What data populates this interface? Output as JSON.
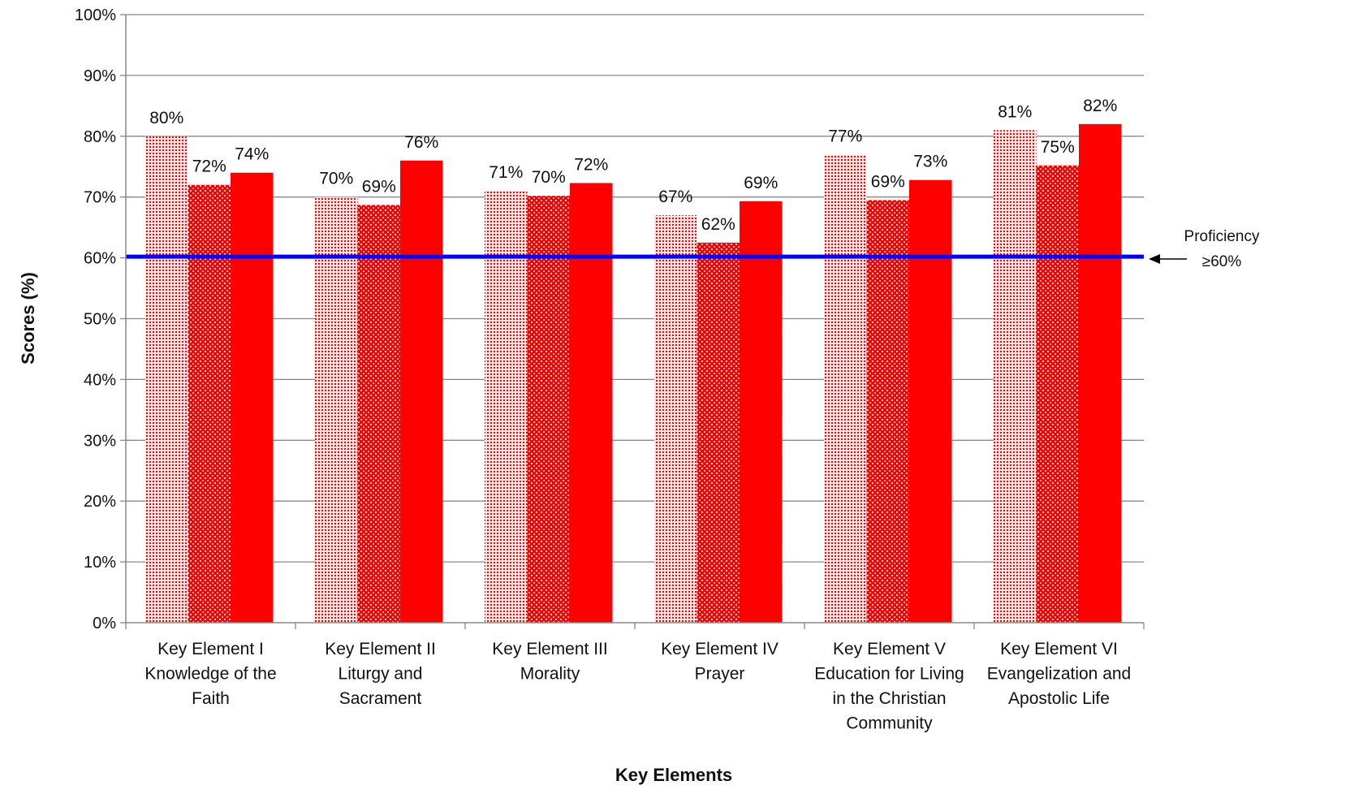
{
  "chart_data": {
    "type": "bar",
    "title": "",
    "xlabel": "Key Elements",
    "ylabel": "Scores (%)",
    "ylim": [
      0,
      100
    ],
    "y_ticks": [
      "0%",
      "10%",
      "20%",
      "30%",
      "40%",
      "50%",
      "60%",
      "70%",
      "80%",
      "90%",
      "100%"
    ],
    "grid": true,
    "legend": "none",
    "categories": [
      [
        "Key Element I",
        "Knowledge of the",
        "Faith"
      ],
      [
        "Key Element II",
        "Liturgy and",
        "Sacrament"
      ],
      [
        "Key Element III",
        "Morality"
      ],
      [
        "Key Element IV",
        "Prayer"
      ],
      [
        "Key Element V",
        "Education for Living",
        "in the Christian",
        "Community"
      ],
      [
        "Key Element VI",
        "Evangelization and",
        "Apostolic Life"
      ]
    ],
    "series": [
      {
        "values": [
          80,
          70,
          71,
          67,
          77,
          81
        ],
        "labels": [
          "80%",
          "70%",
          "71%",
          "67%",
          "77%",
          "81%"
        ],
        "pattern": "dots"
      },
      {
        "values": [
          72,
          68.7,
          70.2,
          62.5,
          69.5,
          75.2
        ],
        "labels": [
          "72%",
          "69%",
          "70%",
          "62%",
          "69%",
          "75%"
        ],
        "pattern": "checker"
      },
      {
        "values": [
          74,
          76,
          72.3,
          69.3,
          72.8,
          82
        ],
        "labels": [
          "74%",
          "76%",
          "72%",
          "69%",
          "73%",
          "82%"
        ],
        "pattern": "solid"
      }
    ],
    "reference_line": {
      "value": 60.2,
      "color": "#0000ff",
      "label_lines": [
        "Proficiency",
        "≥60%"
      ]
    },
    "colors": {
      "bar": "#ff0000",
      "grid": "#888888",
      "axis": "#888888"
    }
  }
}
